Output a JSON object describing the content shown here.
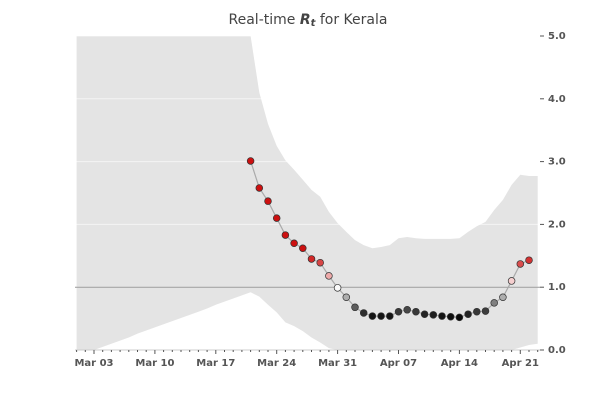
{
  "chart_data": {
    "type": "line",
    "title_prefix": "Real-time",
    "title_symbol": "R",
    "title_subscript": "t",
    "title_suffix": "for Kerala",
    "x": [
      null,
      null,
      "Mar 03",
      null,
      null,
      null,
      null,
      null,
      null,
      "Mar 10",
      null,
      null,
      null,
      null,
      null,
      null,
      "Mar 17",
      null,
      null,
      null,
      null,
      null,
      null,
      "Mar 24",
      null,
      null,
      null,
      null,
      null,
      null,
      "Mar 31",
      null,
      null,
      null,
      null,
      null,
      null,
      "Apr 07",
      null,
      null,
      null,
      null,
      null,
      null,
      "Apr 14",
      null,
      null,
      null,
      null,
      null,
      null,
      "Apr 21",
      null,
      null
    ],
    "series": [
      {
        "values": [
          null,
          null,
          null,
          null,
          null,
          null,
          null,
          null,
          null,
          null,
          null,
          null,
          null,
          null,
          null,
          null,
          null,
          null,
          null,
          null,
          3.01,
          2.58,
          2.37,
          2.1,
          1.83,
          1.7,
          1.62,
          1.45,
          1.39,
          1.18,
          0.99,
          0.84,
          0.68,
          0.59,
          0.54,
          0.54,
          0.54,
          0.61,
          0.64,
          0.61,
          0.57,
          0.56,
          0.54,
          0.53,
          0.52,
          0.57,
          0.61,
          0.62,
          0.75,
          0.84,
          1.1,
          1.37,
          1.43,
          null
        ],
        "lower": [
          0,
          0,
          0,
          0.05,
          0.1,
          0.15,
          0.2,
          0.26,
          0.31,
          0.36,
          0.41,
          0.46,
          0.51,
          0.56,
          0.61,
          0.66,
          0.72,
          0.77,
          0.82,
          0.87,
          0.92,
          0.85,
          0.72,
          0.6,
          0.44,
          0.38,
          0.3,
          0.2,
          0.12,
          0.03,
          0,
          0,
          0,
          0,
          0,
          0,
          0,
          0,
          0,
          0,
          0,
          0,
          0,
          0,
          0,
          0,
          0,
          0,
          0,
          0,
          0,
          0.04,
          0.08,
          0.1
        ],
        "upper": [
          5,
          5,
          5,
          5,
          5,
          5,
          5,
          5,
          5,
          5,
          5,
          5,
          5,
          5,
          5,
          5,
          5,
          5,
          5,
          5,
          5,
          4.1,
          3.6,
          3.25,
          3.02,
          2.87,
          2.71,
          2.55,
          2.44,
          2.2,
          2.02,
          1.88,
          1.75,
          1.67,
          1.62,
          1.64,
          1.67,
          1.78,
          1.8,
          1.78,
          1.77,
          1.77,
          1.77,
          1.77,
          1.78,
          1.88,
          1.97,
          2.04,
          2.23,
          2.39,
          2.63,
          2.79,
          2.77,
          2.77
        ]
      }
    ],
    "colormap": [
      "#000000",
      "#ffffff",
      "#cc1010"
    ],
    "line_color": "#aaaaaa",
    "band_color": "#e4e4e4",
    "ylim": [
      0,
      5
    ],
    "yticks": [
      {
        "value": 0,
        "label": "0.0"
      },
      {
        "value": 1,
        "label": "1.0"
      },
      {
        "value": 2,
        "label": "2.0"
      },
      {
        "value": 3,
        "label": "3.0"
      },
      {
        "value": 4,
        "label": "4.0"
      },
      {
        "value": 5,
        "label": "5.0"
      }
    ],
    "reference_line": 1,
    "grid": true
  }
}
